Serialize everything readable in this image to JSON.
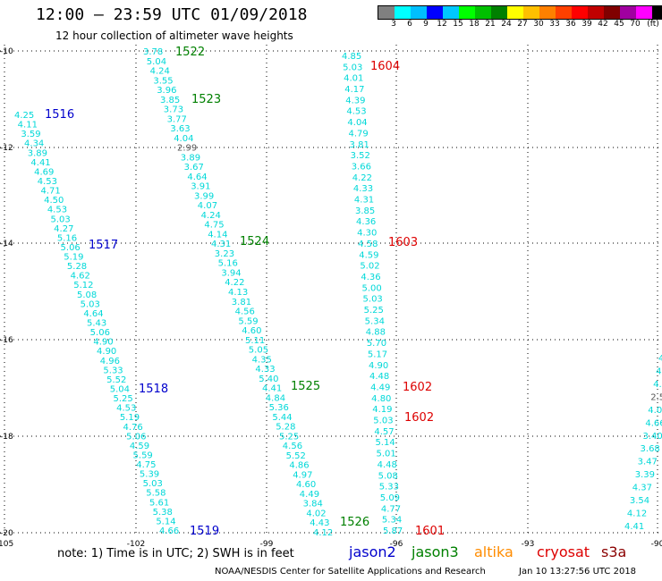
{
  "title": "12:00 – 23:59 UTC 01/09/2018",
  "subtitle": "12 hour collection of altimeter wave heights",
  "legend": {
    "colors": [
      "#808080",
      "#00ffff",
      "#00bfff",
      "#0000ff",
      "#00c8ff",
      "#00ff00",
      "#00c000",
      "#008000",
      "#ffff00",
      "#ffc000",
      "#ff8000",
      "#ff4000",
      "#ff0000",
      "#c00000",
      "#800000",
      "#a000a0",
      "#ff00ff",
      "#000000"
    ],
    "labels": [
      "3",
      "6",
      "9",
      "12",
      "15",
      "18",
      "21",
      "24",
      "27",
      "30",
      "33",
      "36",
      "39",
      "42",
      "45",
      "70",
      "(ft)"
    ]
  },
  "axes": {
    "x_ticks": [
      "-105",
      "-102",
      "-99",
      "-96",
      "-93",
      "-90"
    ],
    "y_ticks": [
      "-10",
      "-12",
      "-14",
      "-16",
      "-18",
      "-20"
    ]
  },
  "tracks": {
    "t1516_1519": [
      "4.25",
      "4.11",
      "3.59",
      "4.34",
      "3.89",
      "4.41",
      "4.69",
      "4.53",
      "4.71",
      "4.50",
      "4.53",
      "5.03",
      "4.27",
      "5.16",
      "5.06",
      "5.19",
      "5.28",
      "4.62",
      "5.12",
      "5.08",
      "5.03",
      "4.64",
      "5.43",
      "5.06",
      "4.90",
      "4.90",
      "4.96",
      "5.33",
      "5.52",
      "5.04",
      "5.25",
      "4.53",
      "5.19",
      "4.76",
      "5.06",
      "4.59",
      "5.59",
      "4.75",
      "5.39",
      "5.03",
      "5.58",
      "5.61",
      "5.38",
      "5.14",
      "4.66"
    ],
    "t1522_1526": [
      "3.78",
      "5.04",
      "4.24",
      "3.55",
      "3.96",
      "3.85",
      "3.73",
      "3.77",
      "3.63",
      "4.04",
      "2.99",
      "3.89",
      "3.67",
      "4.64",
      "3.91",
      "3.99",
      "4.07",
      "4.24",
      "4.75",
      "4.14",
      "4.31",
      "3.23",
      "5.16",
      "3.94",
      "4.22",
      "4.13",
      "3.81",
      "4.56",
      "5.59",
      "4.60",
      "5.11",
      "5.05",
      "4.35",
      "4.33",
      "5.40",
      "4.41",
      "4.84",
      "5.36",
      "5.44",
      "5.28",
      "5.25",
      "4.56",
      "5.52",
      "4.86",
      "4.97",
      "4.60",
      "4.49",
      "3.84",
      "4.02",
      "4.43",
      "4.12"
    ],
    "t1604_1601": [
      "4.85",
      "5.03",
      "4.01",
      "4.17",
      "4.39",
      "4.53",
      "4.04",
      "4.79",
      "3.81",
      "3.52",
      "3.66",
      "4.22",
      "4.33",
      "4.31",
      "3.85",
      "4.36",
      "4.30",
      "4.58",
      "4.59",
      "5.02",
      "4.36",
      "5.00",
      "5.03",
      "5.25",
      "5.34",
      "4.88",
      "5.70",
      "5.17",
      "4.90",
      "4.48",
      "4.49",
      "4.80",
      "4.19",
      "5.03",
      "4.57",
      "5.14",
      "5.01",
      "4.48",
      "5.08",
      "5.33",
      "5.09",
      "4.77",
      "5.34",
      "5.87"
    ],
    "t_right": [
      "4.",
      "4.",
      "4.",
      "2.5",
      "4.00",
      "4.66",
      "3.40",
      "3.68",
      "3.47",
      "3.39",
      "4.37",
      "3.54",
      "4.12",
      "4.41"
    ]
  },
  "pass_labels": [
    {
      "text": "1516",
      "color": "#0000cc"
    },
    {
      "text": "1517",
      "color": "#0000cc"
    },
    {
      "text": "1518",
      "color": "#0000cc"
    },
    {
      "text": "1519",
      "color": "#0000cc"
    },
    {
      "text": "1522",
      "color": "#008000"
    },
    {
      "text": "1523",
      "color": "#008000"
    },
    {
      "text": "1524",
      "color": "#008000"
    },
    {
      "text": "1525",
      "color": "#008000"
    },
    {
      "text": "1526",
      "color": "#008000"
    },
    {
      "text": "1604",
      "color": "#dd0000"
    },
    {
      "text": "1603",
      "color": "#dd0000"
    },
    {
      "text": "1602",
      "color": "#dd0000"
    },
    {
      "text": "1602",
      "color": "#dd0000"
    },
    {
      "text": "1601",
      "color": "#dd0000"
    }
  ],
  "notes": "note:  1) Time is in UTC;  2) SWH is in feet",
  "satellites": [
    {
      "name": "jason2",
      "color": "#0000cc"
    },
    {
      "name": "jason3",
      "color": "#008000"
    },
    {
      "name": "altika",
      "color": "#ff8c00"
    },
    {
      "name": "cryosat",
      "color": "#dd0000"
    },
    {
      "name": "s3a",
      "color": "#8b0000"
    }
  ],
  "credit": "NOAA/NESDIS Center for Satellite Applications and Research",
  "timestamp": "Jan 10 13:27:56 UTC 2018",
  "colors": {
    "wave_value": "#00d8d8",
    "special_value": "#555555"
  }
}
